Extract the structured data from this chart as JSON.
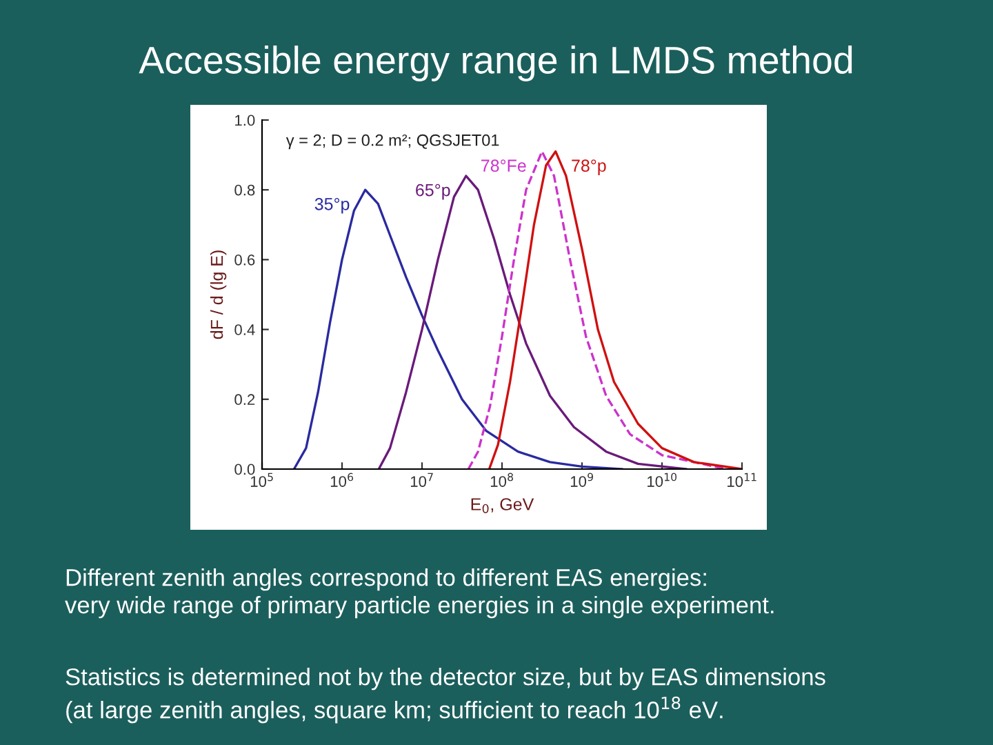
{
  "chart_data": {
    "type": "line",
    "title": "Accessible energy range in LMDS method",
    "xlabel": "E$_{0}$, GeV",
    "ylabel": "dF / d (lg E)",
    "log": "x",
    "xlim": [
      100000.0,
      100000000000.0
    ],
    "ylim": [
      0,
      1.0
    ],
    "xticks": [
      {
        "value": 100000.0,
        "label": "10$^{5}$"
      },
      {
        "value": 1000000.0,
        "label": "10$^{6}$"
      },
      {
        "value": 10000000.0,
        "label": "10$^{7}$"
      },
      {
        "value": 100000000.0,
        "label": "10$^{8}$"
      },
      {
        "value": 1000000000.0,
        "label": "10$^{9}$"
      },
      {
        "value": 10000000000.0,
        "label": "10$^{10}$"
      },
      {
        "value": 100000000000.0,
        "label": "10$^{11}$"
      }
    ],
    "yticks": [
      {
        "value": 0,
        "label": "0.0"
      },
      {
        "value": 0.2,
        "label": "0.2"
      },
      {
        "value": 0.4,
        "label": "0.4"
      },
      {
        "value": 0.6,
        "label": "0.6"
      },
      {
        "value": 0.8,
        "label": "0.8"
      },
      {
        "value": 1.0,
        "label": "1.0"
      }
    ],
    "grid": false,
    "legend": false,
    "marker": "none",
    "series": [
      {
        "name": "35°p",
        "color": "#2a2aa0",
        "line_style": "solid",
        "x": [
          251000.0,
          355000.0,
          501000.0,
          708000.0,
          1000000.0,
          1410000.0,
          1950000.0,
          2820000.0,
          3980000.0,
          6310000.0,
          10000000.0,
          15800000.0,
          31600000.0,
          63100000.0,
          158000000.0,
          398000000.0,
          1000000000.0,
          3160000000.0
        ],
        "values": [
          0,
          0.06,
          0.22,
          0.42,
          0.6,
          0.74,
          0.8,
          0.76,
          0.67,
          0.55,
          0.44,
          0.34,
          0.2,
          0.11,
          0.05,
          0.02,
          0.007,
          0
        ]
      },
      {
        "name": "65°p",
        "color": "#6a1a7a",
        "line_style": "solid",
        "x": [
          2880000.0,
          3980000.0,
          6310000.0,
          10000000.0,
          15800000.0,
          25100000.0,
          35500000.0,
          50100000.0,
          79400000.0,
          126000000.0,
          200000000.0,
          398000000.0,
          794000000.0,
          2000000000.0,
          5010000000.0,
          20000000000.0
        ],
        "values": [
          0,
          0.06,
          0.22,
          0.4,
          0.6,
          0.78,
          0.84,
          0.8,
          0.66,
          0.5,
          0.36,
          0.21,
          0.12,
          0.05,
          0.015,
          0
        ]
      },
      {
        "name": "78°Fe",
        "color": "#cc33cc",
        "line_style": "dashed",
        "x": [
          38000000.0,
          50100000.0,
          70800000.0,
          100000000.0,
          141000000.0,
          200000000.0,
          316000000.0,
          447000000.0,
          708000000.0,
          1120000000.0,
          2000000000.0,
          3980000000.0,
          10000000000.0,
          63100000000.0
        ],
        "values": [
          0,
          0.05,
          0.18,
          0.38,
          0.6,
          0.8,
          0.91,
          0.84,
          0.6,
          0.38,
          0.21,
          0.1,
          0.04,
          0
        ]
      },
      {
        "name": "78°p",
        "color": "#d01010",
        "line_style": "solid",
        "x": [
          69200000.0,
          89100000.0,
          126000000.0,
          178000000.0,
          251000000.0,
          355000000.0,
          468000000.0,
          631000000.0,
          1000000000.0,
          1580000000.0,
          2510000000.0,
          5010000000.0,
          10000000000.0,
          25100000000.0,
          100000000000.0
        ],
        "values": [
          0,
          0.07,
          0.25,
          0.47,
          0.7,
          0.87,
          0.91,
          0.84,
          0.63,
          0.4,
          0.25,
          0.13,
          0.06,
          0.02,
          0
        ]
      }
    ],
    "annotations": [
      "γ = 2; D = 0.2 m²; QGSJET01",
      "Different zenith angles correspond to different EAS energies:\nvery wide range of primary particle energies in a single experiment.",
      "Statistics is determined not by the detector size, but by EAS dimensions\n(at large zenith angles, square km; sufficient to reach 10$^{18}$ eV."
    ]
  }
}
